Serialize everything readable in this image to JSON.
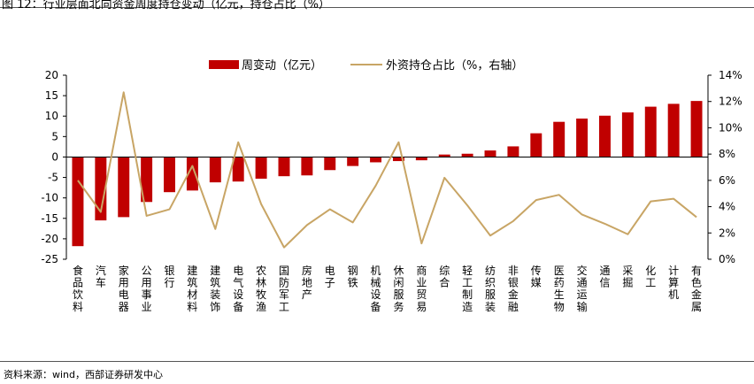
{
  "title": "图 12：行业层面北向资金周度持仓变动（亿元，持仓占比（%）",
  "source": "资料来源：wind，西部证券研发中心",
  "colors": {
    "bar": "#c00000",
    "line": "#c8a565",
    "axis": "#000000"
  },
  "chart_data": {
    "type": "bar+line",
    "categories": [
      "食品饮料",
      "汽车",
      "家用电器",
      "公用事业",
      "银行",
      "建筑材料",
      "建筑装饰",
      "电气设备",
      "农林牧渔",
      "国防军工",
      "房地产",
      "电子",
      "钢铁",
      "机械设备",
      "休闲服务",
      "商业贸易",
      "综合",
      "轻工制造",
      "纺织服装",
      "非银金融",
      "传媒",
      "医药生物",
      "交通运输",
      "通信",
      "采掘",
      "化工",
      "计算机",
      "有色金属"
    ],
    "series": [
      {
        "name": "周变动（亿元）",
        "type": "bar",
        "axis": "left",
        "values": [
          -21.8,
          -15.5,
          -14.7,
          -11.0,
          -8.6,
          -8.2,
          -6.2,
          -6.0,
          -5.3,
          -4.7,
          -4.5,
          -3.2,
          -2.2,
          -1.3,
          -1.0,
          -0.8,
          0.6,
          0.8,
          1.6,
          2.6,
          5.8,
          8.6,
          9.4,
          10.1,
          10.9,
          12.3,
          13.0,
          13.7
        ]
      },
      {
        "name": "外资持仓占比（%，右轴）",
        "type": "line",
        "axis": "right",
        "values": [
          6.0,
          3.6,
          12.7,
          3.3,
          3.8,
          7.1,
          2.3,
          8.9,
          4.2,
          0.9,
          2.6,
          3.8,
          2.8,
          5.6,
          8.9,
          1.2,
          6.2,
          4.1,
          1.8,
          2.9,
          4.5,
          4.9,
          3.4,
          2.7,
          1.9,
          4.4,
          4.6,
          3.2
        ]
      }
    ],
    "left_axis": {
      "ylim": [
        -25,
        20
      ],
      "ticks": [
        "20",
        "15",
        "10",
        "5",
        "0",
        "-5",
        "-10",
        "-15",
        "-20",
        "-25"
      ]
    },
    "right_axis": {
      "ylim": [
        0,
        14
      ],
      "ticks": [
        "14%",
        "12%",
        "10%",
        "8%",
        "6%",
        "4%",
        "2%",
        "0%"
      ]
    },
    "legend": {
      "position": "top",
      "bar_label": "周变动（亿元）",
      "line_label": "外资持仓占比（%，右轴）"
    }
  }
}
